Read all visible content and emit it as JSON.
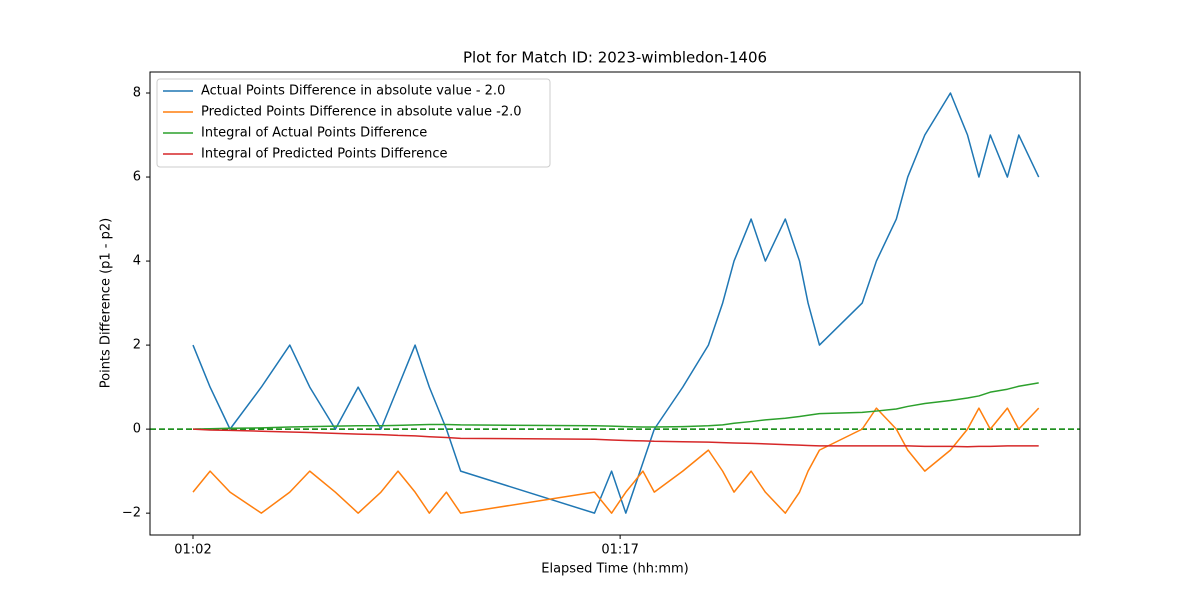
{
  "chart_data": {
    "type": "line",
    "title": "Plot for Match ID: 2023-wimbledon-1406",
    "x_label": "Elapsed Time (hh:mm)",
    "y_label": "Points Difference (p1 - p2)",
    "x": [
      62.0,
      62.6,
      63.3,
      64.4,
      65.4,
      66.1,
      67.0,
      67.8,
      68.6,
      69.2,
      69.8,
      70.3,
      70.9,
      71.4,
      76.1,
      76.7,
      77.2,
      77.8,
      78.2,
      79.2,
      80.1,
      80.6,
      81.0,
      81.6,
      82.1,
      82.8,
      83.3,
      83.6,
      84.0,
      85.5,
      86.0,
      86.7,
      87.1,
      87.7,
      88.6,
      89.2,
      89.6,
      90.0,
      90.6,
      91.0,
      91.7
    ],
    "series": [
      {
        "name": "Actual Points Difference in absolute value - 2.0",
        "color": "#1f77b4",
        "values": [
          2,
          1,
          0,
          1,
          2,
          1,
          0,
          1,
          0,
          1,
          2,
          1,
          0,
          -1,
          -2,
          -1,
          -2,
          -0.8,
          0,
          1,
          2,
          3,
          4,
          5,
          4,
          5,
          4,
          3,
          2,
          3,
          4,
          5,
          6,
          7,
          8,
          7,
          6,
          7,
          6,
          7,
          6
        ]
      },
      {
        "name": "Predicted Points Difference in absolute value -2.0",
        "color": "#ff7f0e",
        "values": [
          -1.5,
          -1,
          -1.5,
          -2,
          -1.5,
          -1,
          -1.5,
          -2,
          -1.5,
          -1,
          -1.5,
          -2,
          -1.5,
          -2,
          -1.5,
          -2,
          -1.5,
          -1,
          -1.5,
          -1,
          -0.5,
          -1,
          -1.5,
          -1,
          -1.5,
          -2,
          -1.5,
          -1,
          -0.5,
          0,
          0.5,
          0,
          -0.5,
          -1,
          -0.5,
          0,
          0.5,
          0,
          0.5,
          0,
          0.5
        ]
      },
      {
        "name": "Integral of Actual Points Difference",
        "color": "#2ca02c",
        "values": [
          0,
          0.01,
          0.02,
          0.03,
          0.05,
          0.06,
          0.07,
          0.08,
          0.08,
          0.09,
          0.1,
          0.11,
          0.11,
          0.1,
          0.08,
          0.07,
          0.06,
          0.05,
          0.05,
          0.06,
          0.08,
          0.1,
          0.14,
          0.18,
          0.22,
          0.26,
          0.3,
          0.33,
          0.37,
          0.4,
          0.43,
          0.48,
          0.54,
          0.61,
          0.68,
          0.74,
          0.79,
          0.88,
          0.95,
          1.02,
          1.1
        ]
      },
      {
        "name": "Integral of Predicted Points Difference",
        "color": "#d62728",
        "values": [
          0,
          -0.02,
          -0.03,
          -0.05,
          -0.07,
          -0.08,
          -0.1,
          -0.12,
          -0.13,
          -0.15,
          -0.16,
          -0.18,
          -0.2,
          -0.22,
          -0.24,
          -0.26,
          -0.27,
          -0.28,
          -0.29,
          -0.3,
          -0.31,
          -0.32,
          -0.33,
          -0.34,
          -0.35,
          -0.37,
          -0.38,
          -0.39,
          -0.4,
          -0.4,
          -0.4,
          -0.4,
          -0.4,
          -0.41,
          -0.41,
          -0.42,
          -0.41,
          -0.41,
          -0.4,
          -0.4,
          -0.4
        ]
      }
    ],
    "hline": {
      "value": 0,
      "color": "#008000"
    },
    "xlim": [
      60.49,
      93.15
    ],
    "xticks": [
      {
        "value": 62,
        "label": "01:02"
      },
      {
        "value": 77,
        "label": "01:17"
      }
    ],
    "ylim": [
      -2.52,
      8.5
    ],
    "yticks": [
      {
        "value": -2,
        "label": "−2"
      },
      0,
      2,
      4,
      6,
      8
    ],
    "grid": false,
    "legend": "upper-left"
  }
}
